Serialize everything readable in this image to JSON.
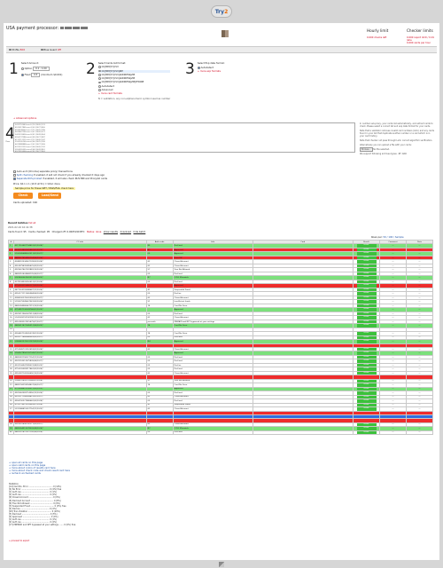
{
  "logo": {
    "text_a": "Try",
    "text_b": "2"
  },
  "header": {
    "title": "USA payment processor:",
    "hourly": {
      "title": "Hourly limit",
      "line": "0.000 checks left"
    },
    "checker": {
      "title": "Checker limits",
      "line1": "0.000 report limit / 0.01 /ahe",
      "line2": "0.000 cards per hour"
    }
  },
  "toolbar": {
    "profile": "Profile",
    "profile_note": "Edit",
    "blue": "Blue Guard",
    "blue_note": "Off"
  },
  "steps": {
    "one": {
      "num": "1",
      "title": "Select Amount:",
      "opt1": "Option",
      "opt1_val": "0.1 - 1.00",
      "opt2": "Fixed",
      "opt2_val": "0.5",
      "opt2_note": "(minimum $0.001)"
    },
    "two": {
      "num": "2",
      "title": "Select Cards list format:",
      "opts": [
        "CC|MM|YY|CVV",
        "CC|MM|YY|CVV|ZIP",
        "CC|MM|YY|CVV|ADDRESS|ZIP",
        "CC|MM|YY|CVV|ADDRESS|ZIP",
        "CC|MM|YY|CVV|ADDRESS|ZIP|PHONE",
        "Autodetect",
        "Advanced"
      ],
      "selected": 1,
      "link": "+ more card formats",
      "note": "N = validation, any non-alphanumeric symbol used as number"
    },
    "three": {
      "num": "3",
      "title": "Select Exp date format:",
      "opt": "Autodetect",
      "link": "+ more exp formats"
    }
  },
  "step4": {
    "num": "4",
    "label": "Clear",
    "title": "+ Advanced options",
    "sample": "5412752043xxxx5|10|2026|123\n4532017865xxxx3|03|2027|456\n4916338502xxxx7|11|2025|789\n4024007195xxxx1|07|2026|321\n5425233430xxxx9|01|2028|654\n4556737586xxxx6|09|2027|987\n4111111111xxxx1|12|2026|147\n5105105105xxxx0|06|2025|258\n4012888888xxxx1|02|2027|369\n4222222222xxxx2|04|2026|741\n5555555555xxxx4|08|2028|852\n4917610000xxxx0|05|2027|963",
    "side1": "In number sub-proxy, your cards list automatically, and extract cards to check. Please select a correct list and exp date format for your cards.",
    "side2": "Note that a validator removes invalid card numbers (luhn) and any cards found in your list that duplicate another number or a card which is in your card history.",
    "side3": "Note that checker not pass through Luhn correct algorithm verification.",
    "side4": "Alternatively you can upload a file with your cards:",
    "browse": "Browse...",
    "file": "No file selected.",
    "side5": "We support following archives types: .RF, RAR",
    "opt1": "Auto-sort (Chrome) separate proxy/ transactions",
    "opt2": "Split checking",
    "opt2b": "if enabled, it will not check if you already checked it days ago",
    "opt3": "Separate RUS proxied",
    "opt3b": "if enabled, it will also check RUS BIN and Proxy/All cards",
    "price": "Price: $0.1 x 1 (10.5 at 51) = total: done",
    "hint": "Sample price for these SPIT / PASS/FAIL check here",
    "check_btn": "Check",
    "download_btn": "Load/Send",
    "uploaded": "Cards uploaded: 196"
  },
  "results": {
    "title": "Recent batches",
    "info": "fail all",
    "date": "2021-02-16 16:41:38",
    "found": "Cards found: 95",
    "checked": "Cards checked: 95",
    "charged": "Charged off: 0.0005190 BTC",
    "status": "Status: done",
    "show": "show results",
    "download": "download",
    "hide": "hide batch",
    "pages_label": "Rows per:",
    "pages_val": "50 / 100 / Sample",
    "headers": [
      "#",
      "CC info",
      "Auth code",
      "Info",
      "Card",
      "Result",
      "Comment",
      "Date"
    ]
  },
  "rows": [
    {
      "c": "g",
      "n": "1",
      "cc": "4217516687794491|01|2024|*",
      "a": "85",
      "i": "Declined",
      "p": "pill",
      "d": "---"
    },
    {
      "c": "r",
      "n": "",
      "cc": "4539153492005462|01|2025|*",
      "a": "N1",
      "i": "Approved",
      "p": "pill",
      "d": "---"
    },
    {
      "c": "g",
      "n": "2",
      "cc": "5100345688002011|01|2027|*",
      "a": "05",
      "i": "Approved",
      "p": "pill",
      "d": "---"
    },
    {
      "c": "r",
      "n": "",
      "cc": "4485527416800154|06|2026|*",
      "a": "",
      "i": "Error LW",
      "p": "pill",
      "d": "---"
    },
    {
      "c": "",
      "n": "3",
      "cc": "4248391534067128|05|2024|*",
      "a": "62",
      "i": "Closed Account",
      "p": "pill",
      "d": "---"
    },
    {
      "c": "",
      "n": "4",
      "cc": "4552879435985425|09|2025|*",
      "a": "62",
      "i": "Closed Account",
      "p": "pill",
      "d": "---"
    },
    {
      "c": "",
      "n": "5",
      "cc": "4929607467281883|10|2026|*",
      "a": "57",
      "i": "Tran Not Allowed",
      "p": "pill",
      "d": "---"
    },
    {
      "c": "",
      "n": "6",
      "cc": "4485910424468135|04|2027|*",
      "a": "05",
      "i": "Declined",
      "p": "pill",
      "d": "---"
    },
    {
      "c": "g",
      "n": "7",
      "cc": "5181430067632512|02|2025|*",
      "a": "N7",
      "i": "CVV2 Mismatch",
      "p": "pill",
      "d": "---"
    },
    {
      "c": "",
      "n": "8",
      "cc": "4278108909950651|01|2024|*",
      "a": "05",
      "i": "Declined",
      "p": "pill",
      "d": "---"
    },
    {
      "c": "r",
      "n": "",
      "cc": "4716093215880127|09|2026|*",
      "a": "",
      "i": "Approved",
      "p": "pill",
      "d": "---"
    },
    {
      "c": "",
      "n": "9",
      "cc": "4871924199988687|11|2026|*",
      "a": "41",
      "i": "Suspended Fraud",
      "p": "pill",
      "d": "---"
    },
    {
      "c": "",
      "n": "10",
      "cc": "4916171111065984|06|2024|*",
      "a": "05",
      "i": "Decline",
      "p": "pill",
      "d": "---"
    },
    {
      "c": "",
      "n": "11",
      "cc": "4286530276020590|02|2027|*",
      "a": "62",
      "i": "Closed Account",
      "p": "pill",
      "d": "---"
    },
    {
      "c": "",
      "n": "12",
      "cc": "5195575349607541|05|2026|*",
      "a": "51",
      "i": "Insufficient funds",
      "p": "pill",
      "d": "---"
    },
    {
      "c": "",
      "n": "13",
      "cc": "4485094980667219|10|2024|*",
      "a": "14",
      "i": "Card No. Error",
      "p": "pill",
      "d": "---"
    },
    {
      "c": "g",
      "n": "14",
      "cc": "4716897130528746|01|2025|*",
      "a": "",
      "i": "Approved",
      "p": "pill",
      "d": "---"
    },
    {
      "c": "",
      "n": "15",
      "cc": "4929511960547012|08|2026|*",
      "a": "05",
      "i": "Declined",
      "p": "pill",
      "d": "---"
    },
    {
      "c": "",
      "n": "16",
      "cc": "5142009118742298|12|2024|*",
      "a": "62",
      "i": "Closed Account",
      "p": "pill",
      "d": "---"
    },
    {
      "c": "",
      "n": "17",
      "cc": "4910983207615479|07|2027|*",
      "a": "pre-auth",
      "i": "PREPAID and NFT bypassed at your settings",
      "p": "pill",
      "d": "---"
    },
    {
      "c": "g",
      "n": "18",
      "cc": "4485611472045312|06|2025|*",
      "a": "14",
      "i": "Card No. Error",
      "p": "pill",
      "d": "---"
    },
    {
      "c": "",
      "n": "19",
      "cc": "",
      "a": "",
      "i": "",
      "p": "",
      "d": ""
    },
    {
      "c": "",
      "n": "20",
      "cc": "4556497124005574|01|2026|*",
      "a": "14",
      "i": "Card No. Error",
      "p": "pill",
      "d": "---"
    },
    {
      "c": "",
      "n": "21",
      "cc": "4916771680446583|05|2027|*",
      "a": "05",
      "i": "Declined",
      "p": "pill",
      "d": "---"
    },
    {
      "c": "g",
      "n": "22",
      "cc": "5280481376031187|09|2026|*",
      "a": "N4",
      "i": "Approved",
      "p": "pill",
      "d": "---"
    },
    {
      "c": "r",
      "n": "",
      "cc": "",
      "a": "",
      "i": "",
      "p": "",
      "d": ""
    },
    {
      "c": "",
      "n": "23",
      "cc": "4716945701352618|02|2024|*",
      "a": "62",
      "i": "Closed Account",
      "p": "pill",
      "d": "---"
    },
    {
      "c": "g",
      "n": "24",
      "cc": "5164027856109734|07|2025|*",
      "a": "",
      "i": "Approved",
      "p": "pill",
      "d": "---"
    },
    {
      "c": "",
      "n": "25",
      "cc": "4485381196327154|11|2026|*",
      "a": "05",
      "i": "Declined",
      "p": "pill",
      "d": "---"
    },
    {
      "c": "",
      "n": "26",
      "cc": "4929763012475809|04|2027|*",
      "a": "05",
      "i": "Declined",
      "p": "pill",
      "d": "---"
    },
    {
      "c": "",
      "n": "27",
      "cc": "4532106947289031|08|2025|*",
      "a": "05",
      "i": "Decline",
      "p": "pill",
      "d": "---"
    },
    {
      "c": "",
      "n": "28",
      "cc": "4716205583917462|03|2026|*",
      "a": "05",
      "i": "Declined",
      "p": "pill",
      "d": "---"
    },
    {
      "c": "",
      "n": "29",
      "cc": "4916387142056690|10|2024|*",
      "a": "62",
      "i": "Closed Account",
      "p": "pill",
      "d": "---"
    },
    {
      "c": "r",
      "n": "",
      "cc": "",
      "a": "",
      "i": "",
      "p": "",
      "d": ""
    },
    {
      "c": "",
      "n": "30",
      "cc": "5168231409753286|01|2028|*",
      "a": "57",
      "i": "Tran Not Allowed",
      "p": "pill",
      "d": "---"
    },
    {
      "c": "",
      "n": "31",
      "cc": "4485706218394407|06|2027|*",
      "a": "14",
      "i": "Card No. Error",
      "p": "pill",
      "d": "---"
    },
    {
      "c": "g",
      "n": "32",
      "cc": "4716548801336921|09|2025|*",
      "a": "",
      "i": "Approved",
      "p": "pill",
      "d": "---"
    },
    {
      "c": "",
      "n": "33",
      "cc": "4929062583714956|12|2026|*",
      "a": "05",
      "i": "Declined",
      "p": "pill",
      "d": "---"
    },
    {
      "c": "",
      "n": "34",
      "cc": "4532977140638815|02|2027|*",
      "a": "62",
      "i": "Closed Account",
      "p": "pill",
      "d": "---"
    },
    {
      "c": "",
      "n": "35",
      "cc": "4556190327486642|05|2024|*",
      "a": "05",
      "i": "Declined",
      "p": "pill",
      "d": "---"
    },
    {
      "c": "",
      "n": "36",
      "cc": "4716774013259983|07|2026|*",
      "a": "41",
      "i": "Suspended Fraud",
      "p": "pill",
      "d": "---"
    },
    {
      "c": "",
      "n": "37",
      "cc": "5232086415907754|11|2025|*",
      "a": "62",
      "i": "Closed Account",
      "p": "pill",
      "d": "---"
    },
    {
      "c": "r",
      "n": "",
      "cc": "",
      "a": "",
      "i": "",
      "p": "",
      "d": ""
    },
    {
      "c": "bl",
      "n": "",
      "cc": "",
      "a": "",
      "i": "",
      "p": "",
      "d": ""
    },
    {
      "c": "r",
      "n": "",
      "cc": "",
      "a": "",
      "i": "",
      "p": "",
      "d": ""
    },
    {
      "c": "",
      "n": "38",
      "cc": "4929351806742271|03|2027|*",
      "a": "62",
      "i": "Closed Account",
      "p": "pill",
      "d": "---"
    },
    {
      "c": "g",
      "n": "39",
      "cc": "4485264913078526|08|2024|*",
      "a": "N7",
      "i": "CVV2 Mismatch",
      "p": "pill",
      "d": "---"
    },
    {
      "c": "",
      "n": "40",
      "cc": "4482307812057190|06|2026|*",
      "a": "05",
      "i": "Declined",
      "p": "pill",
      "d": "---"
    }
  ],
  "links": {
    "l1": "+ open all cards on this page",
    "l2": "+ open valid cards on this page",
    "l3": "+ more about colors of results card here",
    "l4": "+ more about check code and check result card here",
    "l5": "+ recheck unchecked cards"
  },
  "stats": "Statistics:\n[14] Card No. Error ..................................... 0 (14%) \n[4] No Error ........................................... 0 (4%) free\n[1] Auth res ........................................... 0 (1%)\n[2] Auth res ........................................... 0 (2%)\n[9] Closed Account ..................................... 0 (9%)\n[8] Declined Account ................................... 0 (8%)\n[6] Tran Not Allowed ................................... 0 (6%)\n[3] Suspended Fraud .................................... 0 (3%) free\n[4] Decline ............................................ 0 (4%)\n[20] Tran Violation .................................... 0 (20%)\n[5] Declined ........................................... 0 (5%)\n[4] Approved ........................................... 0 (4%)\n[1] Auth res ........................................... 0 (1%)\n[2] Auth res ........................................... 0 (2%)\n[17] PREPAID and NFT bypassed at your settings ....... 0 (0%) free",
  "footer": {
    "signout": "+ proceed to export"
  }
}
